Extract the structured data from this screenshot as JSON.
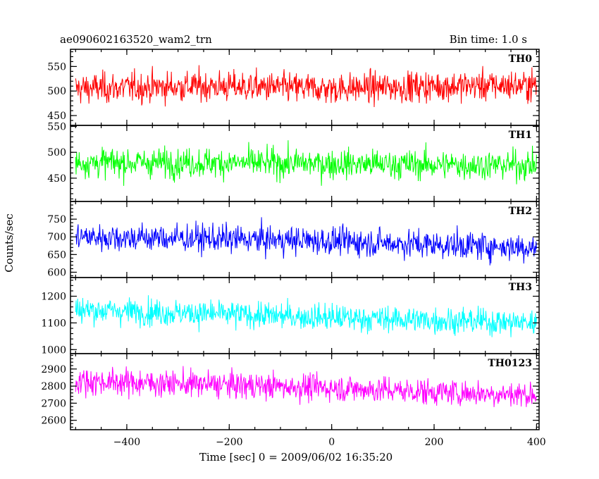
{
  "chart_data": {
    "type": "line",
    "title": "ae090602163520_wam2_trn",
    "title_right": "Bin time: 1.0 s",
    "xlabel": "Time [sec] 0 = 2009/06/02 16:35:20",
    "ylabel": "Counts/sec",
    "xlim": [
      -510,
      405
    ],
    "x_ticks": [
      -400,
      -200,
      0,
      200,
      400
    ],
    "x_tick_labels": [
      "−400",
      "−200",
      "0",
      "200",
      "400"
    ],
    "bin_time_sec": 1.0,
    "x_start": -500,
    "x_end": 400,
    "series": [
      {
        "name": "TH0",
        "color": "#ff0000",
        "mean": 510,
        "noise": 22,
        "ylim": [
          430,
          585
        ],
        "yticks": [
          450,
          500,
          550
        ],
        "trend": [
          [
            -500,
            505
          ],
          [
            -250,
            510
          ],
          [
            0,
            505
          ],
          [
            200,
            510
          ],
          [
            400,
            512
          ]
        ]
      },
      {
        "name": "TH1",
        "color": "#00ff00",
        "mean": 478,
        "noise": 20,
        "ylim": [
          405,
          552
        ],
        "yticks": [
          450,
          500,
          550
        ],
        "trend": [
          [
            -500,
            480
          ],
          [
            -250,
            480
          ],
          [
            0,
            478
          ],
          [
            200,
            476
          ],
          [
            400,
            475
          ]
        ]
      },
      {
        "name": "TH2",
        "color": "#0000ff",
        "mean": 690,
        "noise": 28,
        "ylim": [
          585,
          800
        ],
        "yticks": [
          600,
          650,
          700,
          750
        ],
        "trend": [
          [
            -500,
            700
          ],
          [
            -250,
            695
          ],
          [
            0,
            688
          ],
          [
            200,
            678
          ],
          [
            400,
            670
          ]
        ]
      },
      {
        "name": "TH3",
        "color": "#00ffff",
        "mean": 1125,
        "noise": 35,
        "ylim": [
          985,
          1270
        ],
        "yticks": [
          1000,
          1100,
          1200
        ],
        "trend": [
          [
            -500,
            1150
          ],
          [
            -250,
            1135
          ],
          [
            0,
            1120
          ],
          [
            200,
            1110
          ],
          [
            400,
            1100
          ]
        ]
      },
      {
        "name": "TH0123",
        "color": "#ff00ff",
        "mean": 2790,
        "noise": 55,
        "ylim": [
          2545,
          2990
        ],
        "yticks": [
          2600,
          2700,
          2800,
          2900
        ],
        "trend": [
          [
            -500,
            2830
          ],
          [
            -250,
            2810
          ],
          [
            0,
            2790
          ],
          [
            200,
            2765
          ],
          [
            400,
            2750
          ]
        ]
      }
    ]
  }
}
